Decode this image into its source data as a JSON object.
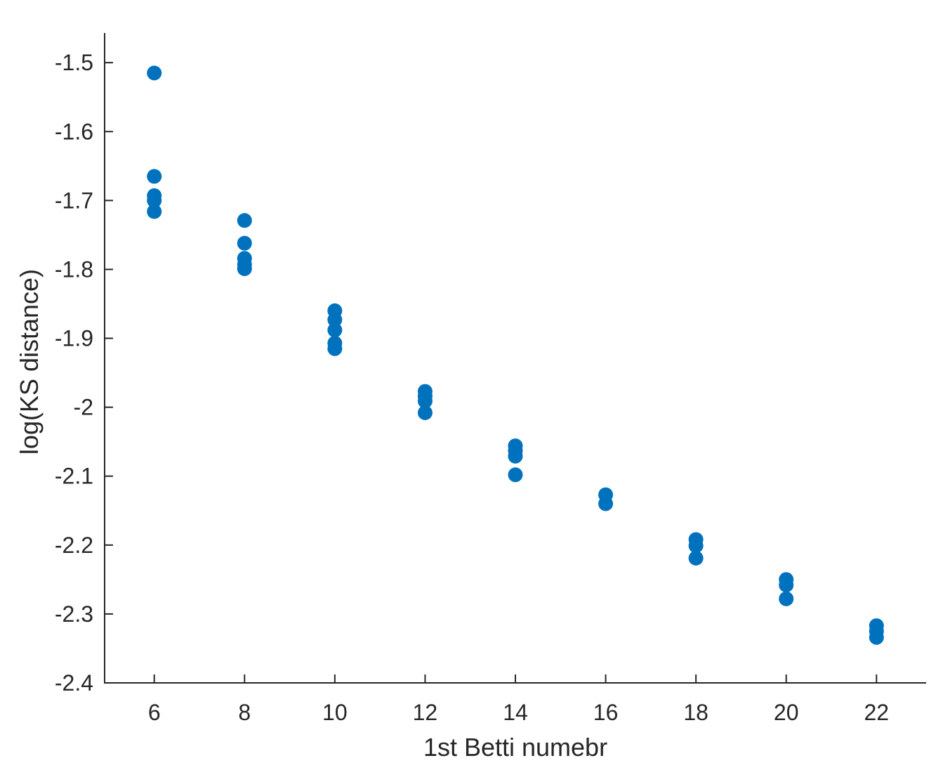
{
  "chart_data": {
    "type": "scatter",
    "title": "",
    "xlabel": "1st Betti numebr",
    "ylabel": "log(KS distance)",
    "xlim": [
      4.9,
      23.1
    ],
    "ylim": [
      -2.4,
      -1.457
    ],
    "xticks": [
      6,
      8,
      10,
      12,
      14,
      16,
      18,
      20,
      22
    ],
    "yticks": [
      -1.5,
      -1.6,
      -1.7,
      -1.8,
      -1.9,
      -2.0,
      -2.1,
      -2.2,
      -2.3,
      -2.4
    ],
    "xtick_labels": [
      "6",
      "8",
      "10",
      "12",
      "14",
      "16",
      "18",
      "20",
      "22"
    ],
    "ytick_labels": [
      "-1.5",
      "-1.6",
      "-1.7",
      "-1.8",
      "-1.9",
      "-2",
      "-2.1",
      "-2.2",
      "-2.3",
      "-2.4"
    ],
    "grid": false,
    "marker_color": "#0072BD",
    "axis_color": "#262626",
    "series": [
      {
        "points": [
          {
            "x": 6,
            "y": -1.515
          },
          {
            "x": 6,
            "y": -1.665
          },
          {
            "x": 6,
            "y": -1.693
          },
          {
            "x": 6,
            "y": -1.7
          },
          {
            "x": 6,
            "y": -1.716
          },
          {
            "x": 8,
            "y": -1.729
          },
          {
            "x": 8,
            "y": -1.762
          },
          {
            "x": 8,
            "y": -1.784
          },
          {
            "x": 8,
            "y": -1.793
          },
          {
            "x": 8,
            "y": -1.799
          },
          {
            "x": 10,
            "y": -1.86
          },
          {
            "x": 10,
            "y": -1.873
          },
          {
            "x": 10,
            "y": -1.888
          },
          {
            "x": 10,
            "y": -1.907
          },
          {
            "x": 10,
            "y": -1.915
          },
          {
            "x": 12,
            "y": -1.977
          },
          {
            "x": 12,
            "y": -1.984
          },
          {
            "x": 12,
            "y": -1.991
          },
          {
            "x": 12,
            "y": -2.008
          },
          {
            "x": 14,
            "y": -2.056
          },
          {
            "x": 14,
            "y": -2.063
          },
          {
            "x": 14,
            "y": -2.071
          },
          {
            "x": 14,
            "y": -2.098
          },
          {
            "x": 16,
            "y": -2.127
          },
          {
            "x": 16,
            "y": -2.14
          },
          {
            "x": 18,
            "y": -2.192
          },
          {
            "x": 18,
            "y": -2.201
          },
          {
            "x": 18,
            "y": -2.219
          },
          {
            "x": 20,
            "y": -2.25
          },
          {
            "x": 20,
            "y": -2.258
          },
          {
            "x": 20,
            "y": -2.278
          },
          {
            "x": 22,
            "y": -2.317
          },
          {
            "x": 22,
            "y": -2.325
          },
          {
            "x": 22,
            "y": -2.334
          }
        ]
      }
    ]
  }
}
